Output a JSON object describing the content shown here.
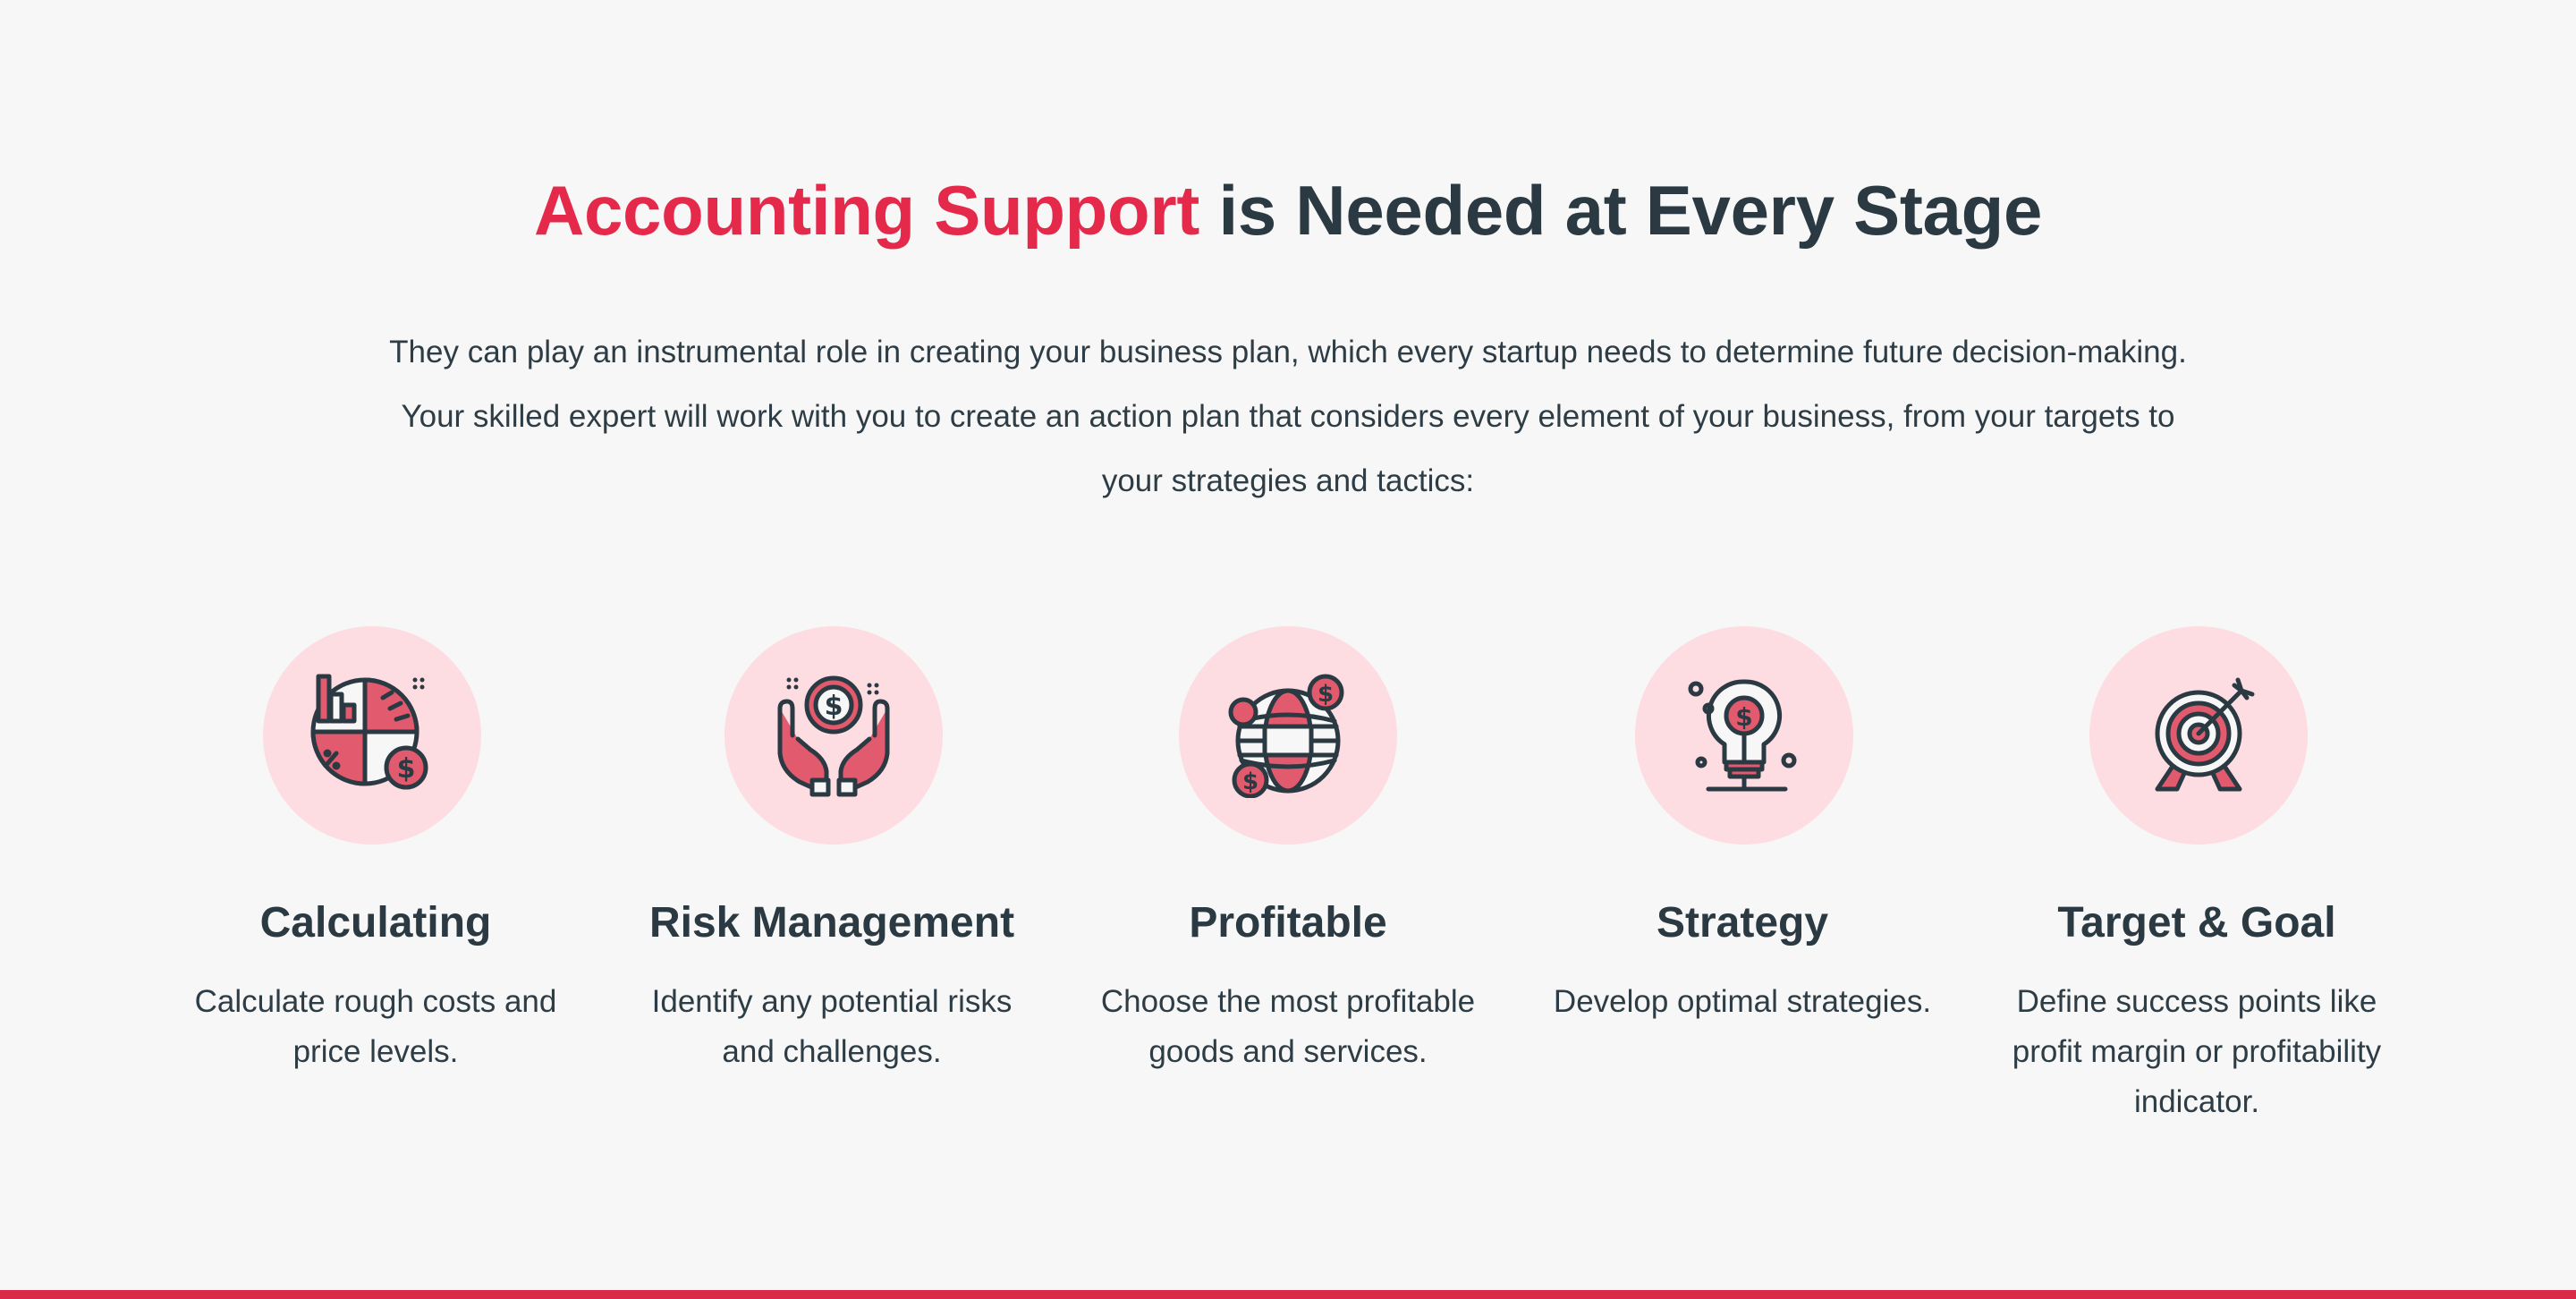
{
  "headline": {
    "accent": "Accounting Support",
    "rest": " is Needed at Every Stage"
  },
  "intro": "They can play an instrumental role in creating your business plan, which every startup needs to determine future decision-making. Your skilled expert will work with you to create an action plan that considers every element of your business, from your targets to your strategies and tactics:",
  "features": [
    {
      "icon": "pie-chart-dollar-icon",
      "title": "Calculating",
      "description": "Calculate rough costs and price levels."
    },
    {
      "icon": "hands-coin-icon",
      "title": "Risk Management",
      "description": "Identify any potential risks and challenges."
    },
    {
      "icon": "globe-dollar-icon",
      "title": "Profitable",
      "description": "Choose the most profitable goods and services."
    },
    {
      "icon": "lightbulb-dollar-icon",
      "title": "Strategy",
      "description": "Develop optimal strategies."
    },
    {
      "icon": "target-arrow-icon",
      "title": "Target & Goal",
      "description": "Define success points like profit margin or profitability indicator."
    }
  ],
  "colors": {
    "accent": "#e5294b",
    "text_dark": "#2b3a42",
    "circle_bg": "#fddde2",
    "icon_fill": "#e25a6e",
    "page_bg": "#f7f7f7",
    "bottom_bar": "#d92b47"
  }
}
